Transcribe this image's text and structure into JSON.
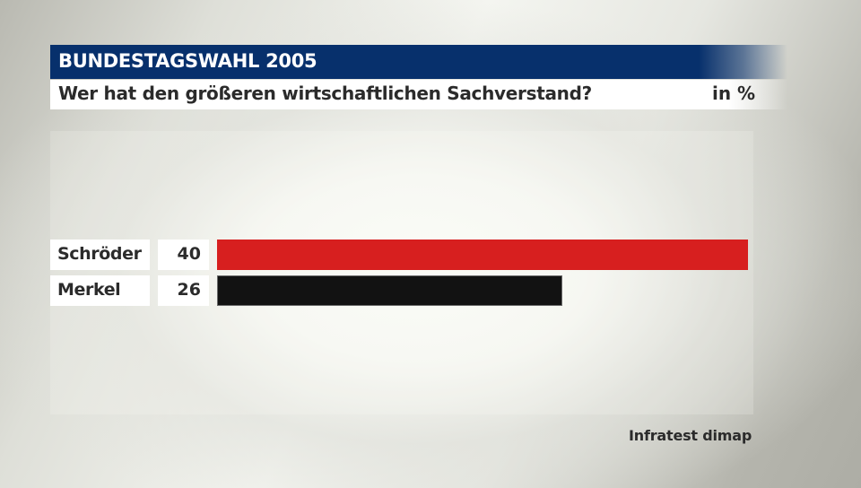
{
  "header": {
    "title": "BUNDESTAGSWAHL 2005",
    "subtitle": "Wer hat den größeren wirtschaftlichen Sachverstand?",
    "unit": "in %",
    "title_bg_color": "#07306c"
  },
  "rows": [
    {
      "label": "Schröder",
      "value": "40",
      "color": "#d71f1f"
    },
    {
      "label": "Merkel",
      "value": "26",
      "color": "#121212"
    }
  ],
  "source": "Infratest dimap",
  "chart_data": {
    "type": "bar",
    "orientation": "horizontal",
    "title": "BUNDESTAGSWAHL 2005",
    "subtitle": "Wer hat den größeren wirtschaftlichen Sachverstand?",
    "unit": "in %",
    "categories": [
      "Schröder",
      "Merkel"
    ],
    "values": [
      40,
      26
    ],
    "colors": [
      "#d71f1f",
      "#121212"
    ],
    "xlabel": "",
    "ylabel": "",
    "grid": false,
    "legend": null,
    "source": "Infratest dimap"
  }
}
